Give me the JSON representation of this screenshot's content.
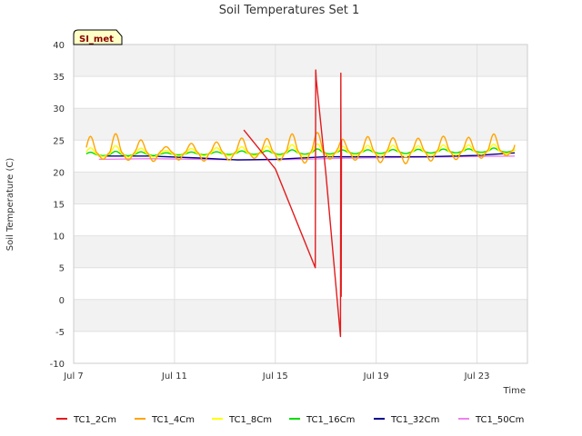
{
  "chart_data": {
    "type": "line",
    "title": "Soil Temperatures Set 1",
    "xlabel": "Time",
    "ylabel": "Soil Temperature (C)",
    "badge": "SI_met",
    "ylim": [
      -10,
      40
    ],
    "xlim": [
      "2023-07-07",
      "2023-07-25"
    ],
    "y_ticks": [
      -10,
      -5,
      0,
      5,
      10,
      15,
      20,
      25,
      30,
      35,
      40
    ],
    "x_ticks": [
      {
        "label": "Jul 7",
        "date": "2023-07-07"
      },
      {
        "label": "Jul 11",
        "date": "2023-07-11"
      },
      {
        "label": "Jul 15",
        "date": "2023-07-15"
      },
      {
        "label": "Jul 19",
        "date": "2023-07-19"
      },
      {
        "label": "Jul 23",
        "date": "2023-07-23"
      }
    ],
    "grid": true,
    "legend_position": "bottom",
    "series": [
      {
        "name": "TC1_2Cm",
        "color": "#e31a1c",
        "style": "line",
        "points": [
          [
            "2023-07-13 18:00",
            26.6
          ],
          [
            "2023-07-15 00:00",
            20.5
          ],
          [
            "2023-07-16 14:00",
            5.0
          ],
          [
            "2023-07-16 14:30",
            36.0
          ],
          [
            "2023-07-16 15:00",
            34.5
          ],
          [
            "2023-07-17 00:00",
            20.0
          ],
          [
            "2023-07-17 14:00",
            -5.8
          ],
          [
            "2023-07-17 14:20",
            35.5
          ],
          [
            "2023-07-17 14:40",
            0.5
          ],
          [
            "2023-07-17 15:00",
            25.0
          ]
        ]
      },
      {
        "name": "TC1_4Cm",
        "color": "#ffa500",
        "style": "diurnal",
        "start": "2023-07-07 12:00",
        "end": "2023-07-24 12:00",
        "base": [
          23.0,
          23.4
        ],
        "amp_up": [
          2.6,
          3.0,
          2.0,
          0.9,
          1.4,
          1.6,
          2.2,
          2.1,
          2.8,
          3.0,
          1.9,
          2.3,
          2.1,
          2.0,
          2.3,
          2.1,
          2.6,
          2.6
        ],
        "amp_down": [
          1.0,
          1.2,
          1.4,
          1.2,
          1.4,
          1.3,
          1.0,
          1.4,
          1.8,
          1.2,
          1.4,
          1.8,
          2.0,
          1.6,
          1.4,
          1.2,
          0.8,
          1.0
        ]
      },
      {
        "name": "TC1_8Cm",
        "color": "#ffff00",
        "style": "diurnal",
        "start": "2023-07-07 12:00",
        "end": "2023-07-24 12:00",
        "base": [
          22.8,
          23.2
        ],
        "amp_up": [
          1.0,
          1.3,
          0.9,
          0.5,
          0.8,
          0.9,
          1.0,
          1.1,
          1.3,
          1.4,
          1.0,
          1.1,
          1.1,
          1.0,
          1.1,
          1.1,
          1.2,
          1.3
        ],
        "amp_down": [
          0.4,
          0.5,
          0.5,
          0.4,
          0.4,
          0.4,
          0.4,
          0.5,
          0.6,
          0.5,
          0.5,
          0.6,
          0.7,
          0.6,
          0.5,
          0.4,
          0.3,
          0.4
        ]
      },
      {
        "name": "TC1_16Cm",
        "color": "#00dd00",
        "style": "diurnal",
        "start": "2023-07-07 12:00",
        "end": "2023-07-24 12:00",
        "base": [
          22.7,
          23.3
        ],
        "amp_up": [
          0.4,
          0.5,
          0.4,
          0.2,
          0.3,
          0.3,
          0.4,
          0.4,
          0.5,
          0.6,
          0.4,
          0.4,
          0.4,
          0.4,
          0.4,
          0.4,
          0.5,
          0.6
        ],
        "amp_down": [
          0.15,
          0.2,
          0.2,
          0.15,
          0.15,
          0.15,
          0.15,
          0.2,
          0.2,
          0.2,
          0.2,
          0.2,
          0.25,
          0.2,
          0.2,
          0.15,
          0.15,
          0.15
        ]
      },
      {
        "name": "TC1_32Cm",
        "color": "#00008b",
        "style": "line",
        "points": [
          [
            "2023-07-08 00:00",
            22.5
          ],
          [
            "2023-07-10 00:00",
            22.5
          ],
          [
            "2023-07-12 00:00",
            22.2
          ],
          [
            "2023-07-13 12:00",
            21.9
          ],
          [
            "2023-07-15 00:00",
            22.0
          ],
          [
            "2023-07-17 00:00",
            22.4
          ],
          [
            "2023-07-19 00:00",
            22.4
          ],
          [
            "2023-07-21 00:00",
            22.4
          ],
          [
            "2023-07-23 00:00",
            22.6
          ],
          [
            "2023-07-24 12:00",
            23.0
          ]
        ]
      },
      {
        "name": "TC1_50Cm",
        "color": "#ee82ee",
        "style": "line",
        "points": [
          [
            "2023-07-08 00:00",
            22.0
          ],
          [
            "2023-07-10 00:00",
            22.1
          ],
          [
            "2023-07-12 00:00",
            22.0
          ],
          [
            "2023-07-14 00:00",
            21.9
          ],
          [
            "2023-07-16 00:00",
            22.0
          ],
          [
            "2023-07-18 00:00",
            22.2
          ],
          [
            "2023-07-20 00:00",
            22.3
          ],
          [
            "2023-07-22 00:00",
            22.4
          ],
          [
            "2023-07-24 12:00",
            22.5
          ]
        ]
      }
    ]
  }
}
